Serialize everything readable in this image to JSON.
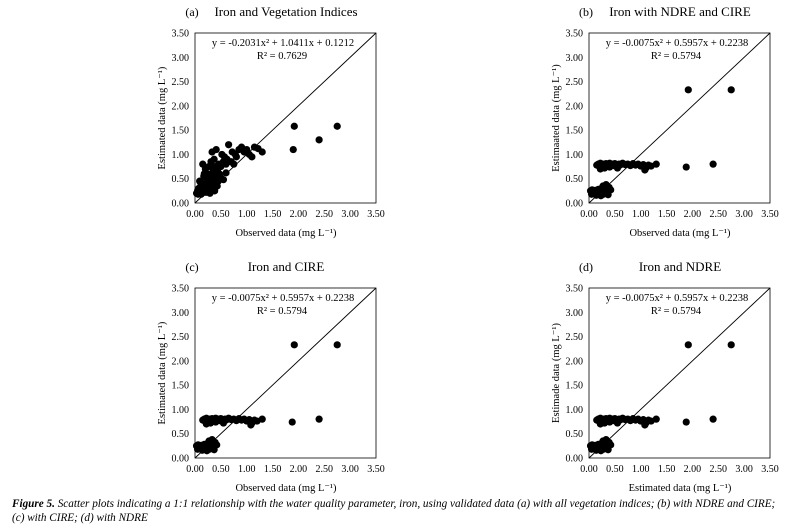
{
  "chart_data": [
    {
      "type": "scatter",
      "panel_label": "(a)",
      "title": "Iron and Vegetation Indices",
      "xlabel": "Observed data (mg L⁻¹)",
      "ylabel": "Estimated data (mg L⁻¹)",
      "xlim": [
        0,
        3.5
      ],
      "ylim": [
        0,
        3.5
      ],
      "xticks": [
        "0.00",
        "0.50",
        "1.00",
        "1.50",
        "2.00",
        "2.50",
        "3.00",
        "3.50"
      ],
      "yticks": [
        "0.00",
        "0.50",
        "1.00",
        "1.50",
        "2.00",
        "2.50",
        "3.00",
        "3.50"
      ],
      "equation": "y = -0.2031x² + 1.0411x + 0.1212",
      "r2": "R² = 0.7629",
      "reference_line": [
        [
          0,
          0
        ],
        [
          3.5,
          3.5
        ]
      ],
      "x": [
        0.03,
        0.05,
        0.06,
        0.07,
        0.08,
        0.09,
        0.1,
        0.11,
        0.12,
        0.13,
        0.14,
        0.15,
        0.16,
        0.17,
        0.18,
        0.19,
        0.2,
        0.21,
        0.22,
        0.23,
        0.24,
        0.25,
        0.26,
        0.27,
        0.28,
        0.29,
        0.3,
        0.31,
        0.32,
        0.33,
        0.34,
        0.35,
        0.36,
        0.37,
        0.38,
        0.39,
        0.4,
        0.41,
        0.42,
        0.43,
        0.44,
        0.45,
        0.46,
        0.47,
        0.48,
        0.5,
        0.52,
        0.55,
        0.57,
        0.6,
        0.62,
        0.65,
        0.7,
        0.72,
        0.75,
        0.78,
        0.8,
        0.85,
        0.9,
        0.95,
        1.0,
        1.05,
        1.1,
        1.15,
        1.22,
        1.3,
        1.9,
        1.92,
        2.4,
        2.75,
        0.15,
        0.25,
        0.35,
        0.45,
        0.55,
        0.12,
        0.22,
        0.32,
        0.42,
        0.18,
        0.28,
        0.38,
        0.6
      ],
      "y": [
        0.2,
        0.25,
        0.18,
        0.3,
        0.22,
        0.45,
        0.28,
        0.35,
        0.2,
        0.4,
        0.25,
        0.8,
        0.3,
        0.55,
        0.22,
        0.38,
        0.7,
        0.3,
        0.5,
        0.25,
        0.6,
        0.42,
        0.32,
        0.75,
        0.55,
        0.2,
        0.45,
        0.85,
        0.35,
        1.05,
        0.5,
        0.65,
        0.4,
        0.9,
        0.55,
        0.75,
        0.45,
        1.1,
        0.6,
        0.35,
        0.7,
        0.5,
        0.8,
        0.6,
        0.55,
        0.75,
        1.0,
        0.85,
        0.95,
        0.8,
        0.9,
        1.2,
        0.85,
        1.05,
        0.8,
        1.0,
        0.95,
        1.1,
        1.15,
        1.05,
        1.1,
        1.0,
        0.95,
        1.15,
        1.12,
        1.05,
        1.1,
        1.58,
        1.3,
        1.58,
        0.35,
        0.28,
        0.52,
        0.45,
        0.48,
        0.18,
        0.22,
        0.3,
        0.35,
        0.6,
        0.5,
        0.25,
        0.62
      ]
    },
    {
      "type": "scatter",
      "panel_label": "(b)",
      "title": "Iron with NDRE and CIRE",
      "xlabel": "Observed data (mg L⁻¹)",
      "ylabel": "Estimaated data (mg L⁻¹)",
      "xlim": [
        0,
        3.5
      ],
      "ylim": [
        0,
        3.5
      ],
      "xticks": [
        "0.00",
        "0.50",
        "1.00",
        "1.50",
        "2.00",
        "2.50",
        "3.00",
        "3.50"
      ],
      "yticks": [
        "0.00",
        "0.50",
        "1.00",
        "1.50",
        "2.00",
        "2.50",
        "3.00",
        "3.50"
      ],
      "equation": "y = -0.0075x² + 0.5957x + 0.2238",
      "r2": "R² = 0.5794",
      "reference_line": [
        [
          0,
          0
        ],
        [
          3.5,
          3.5
        ]
      ],
      "x": [
        0.03,
        0.06,
        0.09,
        0.12,
        0.15,
        0.18,
        0.21,
        0.24,
        0.27,
        0.3,
        0.33,
        0.36,
        0.39,
        0.42,
        0.05,
        0.1,
        0.14,
        0.19,
        0.23,
        0.28,
        0.32,
        0.37,
        0.15,
        0.18,
        0.2,
        0.22,
        0.25,
        0.28,
        0.3,
        0.33,
        0.35,
        0.38,
        0.4,
        0.43,
        0.45,
        0.48,
        0.5,
        0.53,
        0.55,
        0.58,
        0.6,
        0.65,
        0.7,
        0.75,
        0.8,
        0.85,
        0.9,
        0.95,
        1.0,
        1.05,
        1.1,
        1.15,
        1.2,
        1.3,
        1.88,
        1.92,
        2.4,
        2.75,
        0.22,
        0.3,
        0.4,
        0.55,
        1.08
      ],
      "y": [
        0.25,
        0.27,
        0.24,
        0.26,
        0.25,
        0.28,
        0.22,
        0.3,
        0.35,
        0.28,
        0.38,
        0.25,
        0.32,
        0.27,
        0.18,
        0.2,
        0.16,
        0.22,
        0.15,
        0.18,
        0.2,
        0.17,
        0.78,
        0.8,
        0.75,
        0.82,
        0.78,
        0.8,
        0.76,
        0.81,
        0.79,
        0.75,
        0.82,
        0.78,
        0.8,
        0.77,
        0.81,
        0.79,
        0.76,
        0.8,
        0.78,
        0.82,
        0.79,
        0.8,
        0.77,
        0.81,
        0.78,
        0.8,
        0.76,
        0.79,
        0.72,
        0.78,
        0.76,
        0.8,
        0.74,
        2.33,
        0.8,
        2.33,
        0.7,
        0.72,
        0.74,
        0.72,
        0.68
      ]
    },
    {
      "type": "scatter",
      "panel_label": "(c)",
      "title": "Iron and CIRE",
      "xlabel": "Observed data (mg L⁻¹)",
      "ylabel": "Estimated data (mg L⁻¹)",
      "xlim": [
        0,
        3.5
      ],
      "ylim": [
        0,
        3.5
      ],
      "xticks": [
        "0.00",
        "0.50",
        "1.00",
        "1.50",
        "2.00",
        "2.50",
        "3.00",
        "3.50"
      ],
      "yticks": [
        "0.00",
        "0.50",
        "1.00",
        "1.50",
        "2.00",
        "2.50",
        "3.00",
        "3.50"
      ],
      "equation": "y = -0.0075x² + 0.5957x + 0.2238",
      "r2": "R² = 0.5794",
      "reference_line": [
        [
          0,
          0
        ],
        [
          3.5,
          3.5
        ]
      ],
      "x": [
        0.03,
        0.06,
        0.09,
        0.12,
        0.15,
        0.18,
        0.21,
        0.24,
        0.27,
        0.3,
        0.33,
        0.36,
        0.39,
        0.42,
        0.05,
        0.1,
        0.14,
        0.19,
        0.23,
        0.28,
        0.32,
        0.37,
        0.15,
        0.18,
        0.2,
        0.22,
        0.25,
        0.28,
        0.3,
        0.33,
        0.35,
        0.38,
        0.4,
        0.43,
        0.45,
        0.48,
        0.5,
        0.53,
        0.55,
        0.58,
        0.6,
        0.65,
        0.7,
        0.75,
        0.8,
        0.85,
        0.9,
        0.95,
        1.0,
        1.05,
        1.1,
        1.15,
        1.2,
        1.3,
        1.88,
        1.92,
        2.4,
        2.75,
        0.22,
        0.3,
        0.4,
        0.55,
        1.08
      ],
      "y": [
        0.25,
        0.27,
        0.24,
        0.26,
        0.25,
        0.28,
        0.22,
        0.3,
        0.35,
        0.28,
        0.38,
        0.25,
        0.32,
        0.27,
        0.18,
        0.2,
        0.16,
        0.22,
        0.15,
        0.18,
        0.2,
        0.17,
        0.78,
        0.8,
        0.75,
        0.82,
        0.78,
        0.8,
        0.76,
        0.81,
        0.79,
        0.75,
        0.82,
        0.78,
        0.8,
        0.77,
        0.81,
        0.79,
        0.76,
        0.8,
        0.78,
        0.82,
        0.79,
        0.8,
        0.77,
        0.81,
        0.78,
        0.8,
        0.76,
        0.79,
        0.72,
        0.78,
        0.76,
        0.8,
        0.74,
        2.33,
        0.8,
        2.33,
        0.7,
        0.72,
        0.74,
        0.72,
        0.68
      ]
    },
    {
      "type": "scatter",
      "panel_label": "(d)",
      "title": "Iron and NDRE",
      "xlabel": "Estimated data (mg L⁻¹)",
      "ylabel": "Estimade data (mg L⁻¹)",
      "xlim": [
        0,
        3.5
      ],
      "ylim": [
        0,
        3.5
      ],
      "xticks": [
        "0.00",
        "0.50",
        "1.00",
        "1.50",
        "2.00",
        "2.50",
        "3.00",
        "3.50"
      ],
      "yticks": [
        "0.00",
        "0.50",
        "1.00",
        "1.50",
        "2.00",
        "2.50",
        "3.00",
        "3.50"
      ],
      "equation": "y = -0.0075x² + 0.5957x + 0.2238",
      "r2": "R² = 0.5794",
      "reference_line": [
        [
          0,
          0
        ],
        [
          3.5,
          3.5
        ]
      ],
      "x": [
        0.03,
        0.06,
        0.09,
        0.12,
        0.15,
        0.18,
        0.21,
        0.24,
        0.27,
        0.3,
        0.33,
        0.36,
        0.39,
        0.42,
        0.05,
        0.1,
        0.14,
        0.19,
        0.23,
        0.28,
        0.32,
        0.37,
        0.15,
        0.18,
        0.2,
        0.22,
        0.25,
        0.28,
        0.3,
        0.33,
        0.35,
        0.38,
        0.4,
        0.43,
        0.45,
        0.48,
        0.5,
        0.53,
        0.55,
        0.58,
        0.6,
        0.65,
        0.7,
        0.75,
        0.8,
        0.85,
        0.9,
        0.95,
        1.0,
        1.05,
        1.1,
        1.15,
        1.2,
        1.3,
        1.88,
        1.92,
        2.4,
        2.75,
        0.22,
        0.3,
        0.4,
        0.55,
        1.08
      ],
      "y": [
        0.25,
        0.27,
        0.24,
        0.26,
        0.25,
        0.28,
        0.22,
        0.3,
        0.35,
        0.28,
        0.38,
        0.25,
        0.32,
        0.27,
        0.18,
        0.2,
        0.16,
        0.22,
        0.15,
        0.18,
        0.2,
        0.17,
        0.78,
        0.8,
        0.75,
        0.82,
        0.78,
        0.8,
        0.76,
        0.81,
        0.79,
        0.75,
        0.82,
        0.78,
        0.8,
        0.77,
        0.81,
        0.79,
        0.76,
        0.8,
        0.78,
        0.82,
        0.79,
        0.8,
        0.77,
        0.81,
        0.78,
        0.8,
        0.76,
        0.79,
        0.72,
        0.78,
        0.76,
        0.8,
        0.74,
        2.33,
        0.8,
        2.33,
        0.7,
        0.72,
        0.74,
        0.72,
        0.68
      ]
    }
  ],
  "caption": {
    "label": "Figure 5.",
    "text": " Scatter plots indicating a 1:1 relationship with the water quality parameter, iron, using validated data (a) with all vegetation indices; (b) with NDRE and CIRE; (c) with CIRE; (d) with NDRE"
  }
}
